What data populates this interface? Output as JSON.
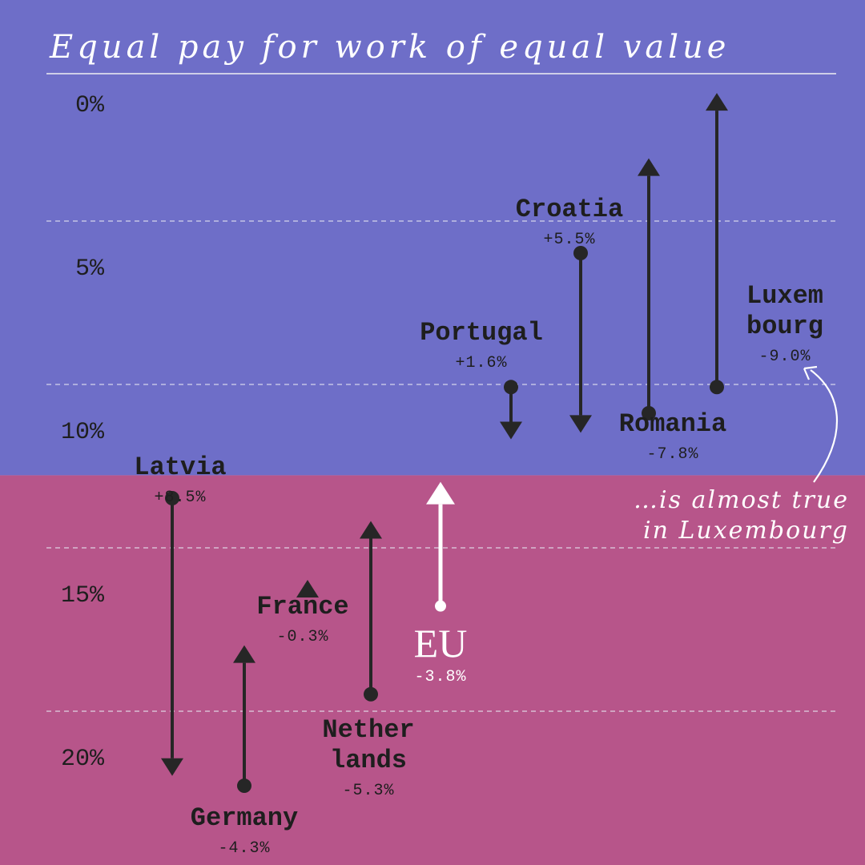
{
  "colors": {
    "upper_band": "#6e6ec8",
    "lower_band": "#b7558a",
    "arrow": "#262626",
    "eu_arrow": "#ffffff",
    "text": "#1e1e1e",
    "white": "#ffffff"
  },
  "chart_data": {
    "type": "arrow",
    "title": "Equal pay for work of equal value",
    "y_axis": {
      "ticks": [
        0,
        5,
        10,
        15,
        20
      ],
      "tick_labels": [
        "0%",
        "5%",
        "10%",
        "15%",
        "20%"
      ],
      "inverted": true,
      "grid": "dashed"
    },
    "threshold": 11.8,
    "annotation": "…is almost true in Luxembourg",
    "annotation_lines": [
      "…is almost true",
      "in Luxembourg"
    ],
    "series": [
      {
        "key": "latvia",
        "name_lines": [
          "Latvia"
        ],
        "change_label": "+8.5%",
        "from": 12.5,
        "to": 21.0
      },
      {
        "key": "germany",
        "name_lines": [
          "Germany"
        ],
        "change_label": "-4.3%",
        "from": 21.3,
        "to": 17.0
      },
      {
        "key": "france",
        "name_lines": [
          "France"
        ],
        "change_label": "-0.3%",
        "from": 15.3,
        "to": 15.0
      },
      {
        "key": "netherlands",
        "name_lines": [
          "Nether",
          "lands"
        ],
        "change_label": "-5.3%",
        "from": 18.5,
        "to": 13.2
      },
      {
        "key": "eu",
        "name_lines": [
          "EU"
        ],
        "change_label": "-3.8%",
        "from": 15.8,
        "to": 12.0
      },
      {
        "key": "portugal",
        "name_lines": [
          "Portugal"
        ],
        "change_label": "+1.6%",
        "from": 9.1,
        "to": 10.7
      },
      {
        "key": "croatia",
        "name_lines": [
          "Croatia"
        ],
        "change_label": "+5.5%",
        "from": 5.0,
        "to": 10.5
      },
      {
        "key": "romania",
        "name_lines": [
          "Romania"
        ],
        "change_label": "-7.8%",
        "from": 9.9,
        "to": 2.1
      },
      {
        "key": "luxembourg",
        "name_lines": [
          "Luxem",
          "bourg"
        ],
        "change_label": "-9.0%",
        "from": 9.1,
        "to": 0.1
      }
    ]
  }
}
